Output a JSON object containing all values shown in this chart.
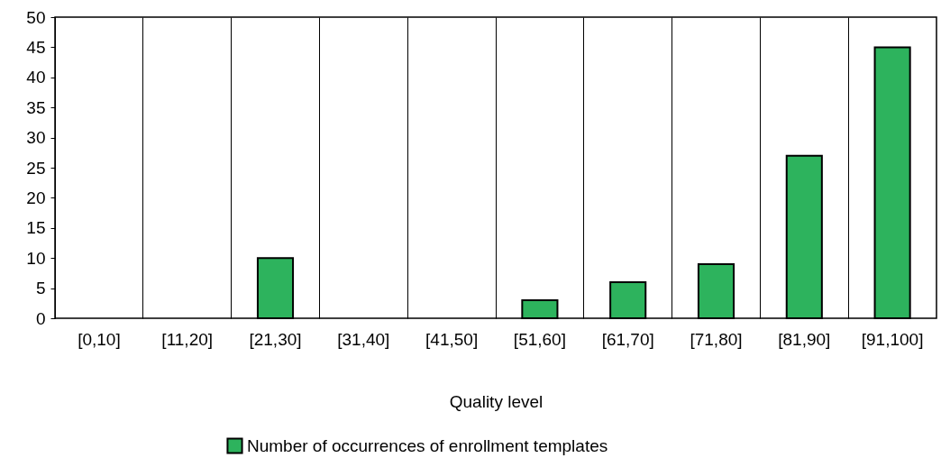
{
  "chart_data": {
    "type": "bar",
    "xlabel": "Quality level",
    "categories": [
      "[0,10]",
      "[11,20]",
      "[21,30]",
      "[31,40]",
      "[41,50]",
      "[51,60]",
      "[61,70]",
      "[71,80]",
      "[81,90]",
      "[91,100]"
    ],
    "series": [
      {
        "name": "Number of occurrences of enrollment templates",
        "color": "#2db35d",
        "values": [
          0,
          0,
          10,
          0,
          0,
          3,
          6,
          9,
          27,
          45
        ]
      }
    ],
    "ylim": [
      0,
      50
    ],
    "yticks": [
      0,
      5,
      10,
      15,
      20,
      25,
      30,
      35,
      40,
      45,
      50
    ],
    "grid": "x",
    "legend": "bottom"
  }
}
